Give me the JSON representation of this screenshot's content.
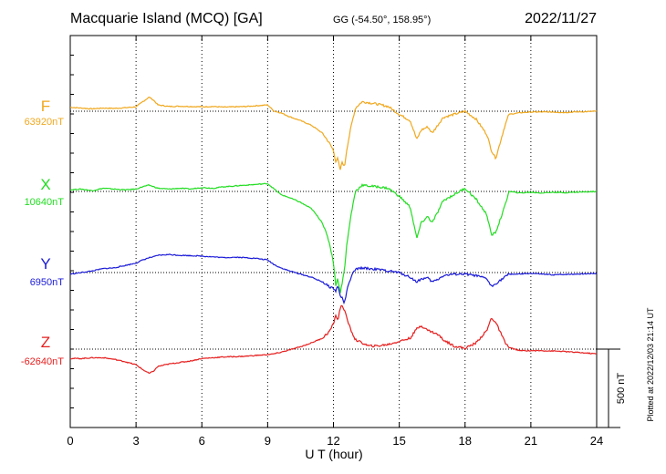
{
  "header": {
    "station": "Macquarie Island (MCQ)  [GA]",
    "coords": "GG (-54.50°, 158.95°)",
    "date": "2022/11/27"
  },
  "x_axis": {
    "label": "U T (hour)",
    "ticks": [
      "0",
      "3",
      "6",
      "9",
      "12",
      "15",
      "18",
      "21",
      "24"
    ]
  },
  "scale_label": "500 nT",
  "plotted_note": "Plotted at 2022/12/03 21:14 UT",
  "chart_data": {
    "type": "line",
    "title": "Macquarie Island (MCQ)  [GA]",
    "xlabel": "U T (hour)",
    "xlim": [
      0,
      24
    ],
    "x_ticks": [
      0,
      3,
      6,
      9,
      12,
      15,
      18,
      21,
      24
    ],
    "grid": true,
    "scale_bar_nT": 500,
    "x": [
      0,
      0.5,
      1,
      1.5,
      2,
      2.5,
      3,
      3.3,
      3.6,
      3.8,
      4,
      4.5,
      5,
      5.5,
      6,
      6.5,
      7,
      7.5,
      8,
      8.5,
      9,
      9.3,
      9.6,
      10,
      10.5,
      11,
      11.5,
      11.8,
      12,
      12.1,
      12.2,
      12.3,
      12.4,
      12.5,
      12.6,
      12.8,
      13,
      13.3,
      13.6,
      14,
      14.5,
      15,
      15.5,
      15.8,
      16,
      16.3,
      16.5,
      16.8,
      17,
      17.5,
      18,
      18.5,
      19,
      19.2,
      19.4,
      19.6,
      19.8,
      20,
      20.5,
      21,
      21.5,
      22,
      22.5,
      23,
      23.5,
      24
    ],
    "series": [
      {
        "name": "F",
        "baseline_label": "63920nT",
        "color": "#f0a81e",
        "values": [
          25,
          20,
          15,
          20,
          18,
          22,
          28,
          60,
          90,
          70,
          40,
          30,
          32,
          30,
          28,
          30,
          26,
          28,
          30,
          35,
          40,
          0,
          -10,
          -35,
          -60,
          -90,
          -140,
          -200,
          -250,
          -320,
          -300,
          -380,
          -320,
          -360,
          -250,
          -100,
          20,
          60,
          55,
          45,
          30,
          -20,
          -60,
          -180,
          -120,
          -100,
          -140,
          -80,
          -40,
          -20,
          0,
          -50,
          -150,
          -250,
          -300,
          -200,
          -100,
          -20,
          -10,
          -5,
          -5,
          -5,
          -8,
          -5,
          -3,
          0
        ]
      },
      {
        "name": "X",
        "baseline_label": "10640nT",
        "color": "#22dd22",
        "values": [
          10,
          15,
          5,
          20,
          15,
          10,
          15,
          30,
          40,
          30,
          20,
          15,
          20,
          15,
          25,
          20,
          30,
          35,
          40,
          45,
          50,
          15,
          -20,
          -40,
          -70,
          -110,
          -200,
          -320,
          -450,
          -600,
          -550,
          -650,
          -580,
          -500,
          -350,
          -150,
          0,
          40,
          35,
          30,
          20,
          -30,
          -100,
          -300,
          -200,
          -160,
          -200,
          -120,
          -60,
          -20,
          20,
          -50,
          -150,
          -280,
          -260,
          -180,
          -100,
          0,
          -10,
          -5,
          -10,
          -5,
          -8,
          -5,
          -3,
          0
        ]
      },
      {
        "name": "Y",
        "baseline_label": "6950nT",
        "color": "#1a1ad8",
        "values": [
          -10,
          0,
          10,
          25,
          30,
          45,
          60,
          80,
          95,
          100,
          110,
          115,
          110,
          108,
          105,
          100,
          95,
          98,
          95,
          90,
          80,
          50,
          30,
          10,
          -10,
          -30,
          -60,
          -90,
          -100,
          -120,
          -80,
          -150,
          -160,
          -200,
          -120,
          -30,
          20,
          30,
          25,
          20,
          10,
          0,
          -30,
          -60,
          -40,
          -35,
          -60,
          -40,
          -20,
          -10,
          -10,
          -20,
          -40,
          -90,
          -70,
          -50,
          -30,
          -10,
          -10,
          -5,
          -10,
          -15,
          -12,
          -10,
          -8,
          -5
        ]
      },
      {
        "name": "Z",
        "baseline_label": "-62640nT",
        "color": "#e61e1e",
        "values": [
          -60,
          -60,
          -55,
          -55,
          -65,
          -80,
          -100,
          -130,
          -155,
          -140,
          -110,
          -95,
          -85,
          -75,
          -60,
          -55,
          -50,
          -48,
          -45,
          -40,
          -35,
          -30,
          -20,
          -5,
          15,
          40,
          70,
          110,
          160,
          220,
          180,
          260,
          280,
          250,
          200,
          120,
          60,
          40,
          20,
          20,
          30,
          50,
          70,
          130,
          150,
          120,
          110,
          90,
          60,
          20,
          5,
          40,
          120,
          200,
          170,
          110,
          50,
          10,
          -10,
          -10,
          -10,
          -12,
          -15,
          -20,
          -25,
          -30
        ]
      }
    ]
  }
}
